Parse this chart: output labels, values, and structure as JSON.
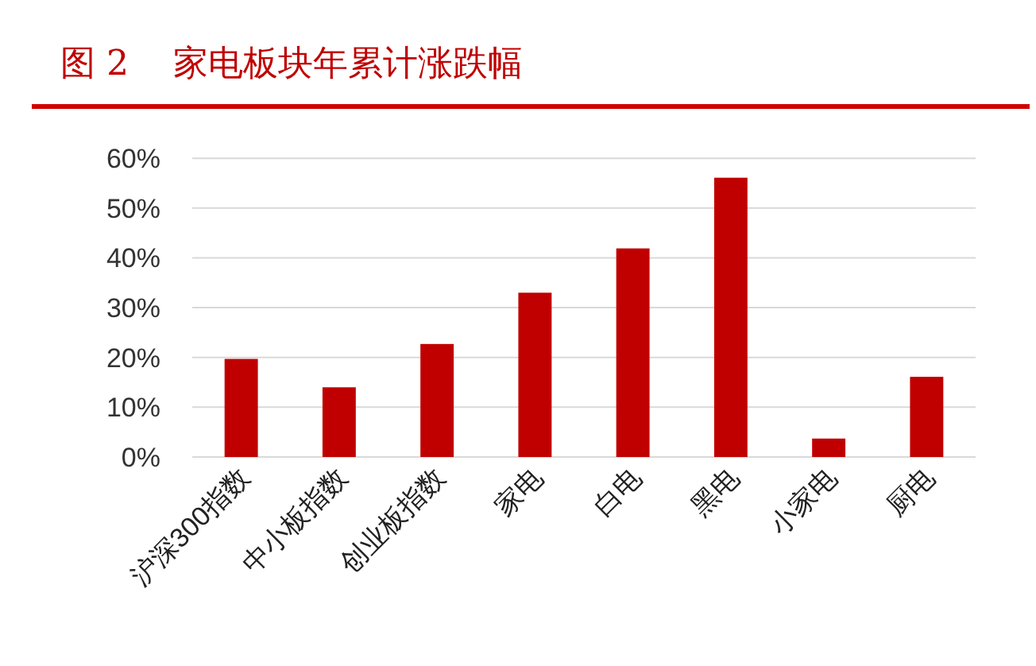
{
  "chart_data": {
    "type": "bar",
    "title": "图 2    家电板块年累计涨跌幅",
    "categories": [
      "沪深300指数",
      "中小板指数",
      "创业板指数",
      "家电",
      "白电",
      "黑电",
      "小家电",
      "厨电"
    ],
    "values": [
      19.7,
      14.0,
      22.7,
      33.0,
      41.9,
      56.1,
      3.7,
      16.1
    ],
    "color": "#c00000",
    "ylim": [
      0,
      60
    ],
    "yticks": [
      {
        "value": 0,
        "label": "0%"
      },
      {
        "value": 10,
        "label": "10%"
      },
      {
        "value": 20,
        "label": "20%"
      },
      {
        "value": 30,
        "label": "30%"
      },
      {
        "value": 40,
        "label": "40%"
      },
      {
        "value": 50,
        "label": "50%"
      },
      {
        "value": 60,
        "label": "60%"
      }
    ],
    "grid": "y"
  }
}
